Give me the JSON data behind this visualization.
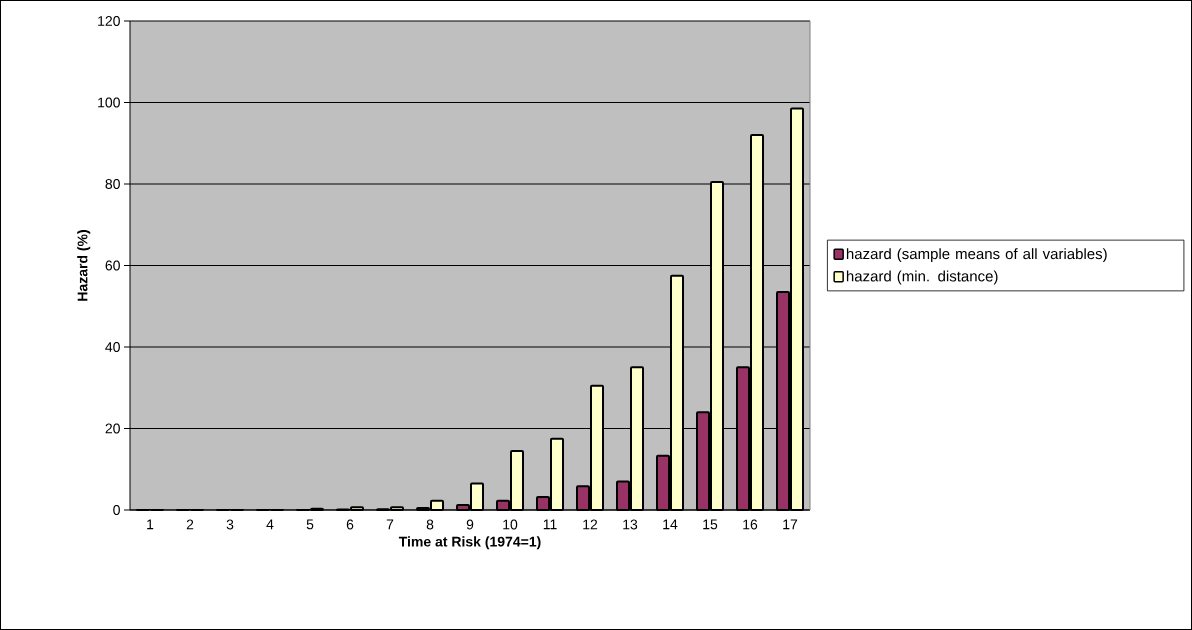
{
  "chart_data": {
    "type": "bar",
    "xlabel": "Time at Risk (1974=1)",
    "ylabel": "Hazard (%)",
    "categories": [
      "1",
      "2",
      "3",
      "4",
      "5",
      "6",
      "7",
      "8",
      "9",
      "10",
      "11",
      "12",
      "13",
      "14",
      "15",
      "16",
      "17"
    ],
    "series": [
      {
        "name": "hazard (sample means of all variables)",
        "color": "#993366",
        "values": [
          0,
          0,
          0,
          0,
          0,
          0.1,
          0.2,
          0.5,
          1.2,
          2.3,
          3.2,
          5.8,
          7,
          13.3,
          24,
          35,
          53.5
        ]
      },
      {
        "name": "hazard (min. distance)",
        "color": "#ffffcc",
        "values": [
          0,
          0,
          0,
          0,
          0.3,
          0.7,
          0.7,
          2.3,
          6.5,
          14.5,
          17.5,
          30.5,
          35,
          57.5,
          80.5,
          92,
          98.5
        ]
      }
    ],
    "ylim": [
      0,
      120
    ],
    "yticks": [
      0,
      20,
      40,
      60,
      80,
      100,
      120
    ],
    "grid": "y",
    "legend": "right"
  }
}
